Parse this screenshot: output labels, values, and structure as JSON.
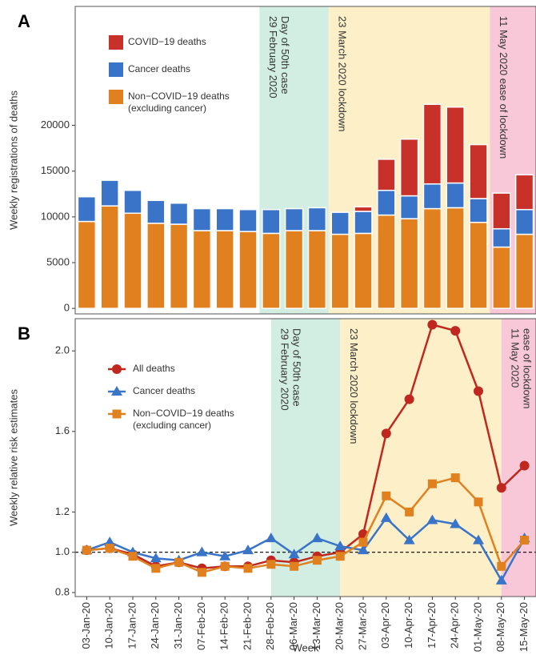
{
  "chart_data": [
    {
      "type": "stacked_bar",
      "panel": "A",
      "y_label": "Weekly registrations of deaths",
      "ylim": [
        -600,
        33000
      ],
      "yticks": [
        0,
        5000,
        10000,
        15000,
        20000
      ],
      "series": [
        {
          "name": "Non−COVID−19 deaths\n(excluding cancer)",
          "color": "#e0801e",
          "values": [
            9500,
            11200,
            10400,
            9300,
            9200,
            8500,
            8500,
            8400,
            8200,
            8500,
            8500,
            8100,
            8200,
            10200,
            9800,
            10900,
            11000,
            9400,
            6700,
            8100
          ]
        },
        {
          "name": "Cancer deaths",
          "color": "#3a74c9",
          "values": [
            2700,
            2800,
            2500,
            2500,
            2300,
            2400,
            2400,
            2400,
            2600,
            2400,
            2500,
            2400,
            2400,
            2700,
            2500,
            2700,
            2700,
            2600,
            2000,
            2700
          ]
        },
        {
          "name": "COVID−19 deaths",
          "color": "#c8312a",
          "values": [
            0,
            0,
            0,
            0,
            0,
            0,
            0,
            0,
            0,
            0,
            0,
            0,
            500,
            3400,
            6200,
            8700,
            8300,
            5900,
            3900,
            3800
          ]
        }
      ],
      "regions": [
        {
          "from": "28-Feb-20",
          "to": "13-Mar-20",
          "color": "#d2eee2",
          "text_color": "#2a8a6a",
          "lines": [
            "29 February 2020",
            "Day of 50th case"
          ]
        },
        {
          "from": "20-Mar-20",
          "to": "01-May-20",
          "color": "#fdefc8",
          "text_color": "#6b5a35",
          "lines": [
            "23 March 2020 lockdown"
          ]
        },
        {
          "from": "08-May-20",
          "to": "15-May-20",
          "color": "#f9c8d8",
          "text_color": "#d0306a",
          "lines": [
            "11 May 2020 ease of lockdown"
          ]
        }
      ]
    },
    {
      "type": "line",
      "panel": "B",
      "y_label": "Weekly relative risk estimates",
      "x_label": "Week",
      "categories": [
        "03-Jan-20",
        "10-Jan-20",
        "17-Jan-20",
        "24-Jan-20",
        "31-Jan-20",
        "07-Feb-20",
        "14-Feb-20",
        "21-Feb-20",
        "28-Feb-20",
        "06-Mar-20",
        "13-Mar-20",
        "20-Mar-20",
        "27-Mar-20",
        "03-Apr-20",
        "10-Apr-20",
        "17-Apr-20",
        "24-Apr-20",
        "01-May-20",
        "08-May-20",
        "15-May-20"
      ],
      "ylim": [
        0.78,
        2.16
      ],
      "yticks": [
        0.8,
        {
          "value": 1,
          "label": "1.0"
        },
        1.2,
        1.6,
        {
          "value": 2,
          "label": "2.0"
        }
      ],
      "hline": 1,
      "series": [
        {
          "name": "All deaths",
          "color": "#c0281f",
          "marker": "circle",
          "values": [
            1.01,
            1.02,
            0.99,
            0.93,
            0.95,
            0.92,
            0.93,
            0.93,
            0.96,
            0.95,
            0.98,
            1.0,
            1.09,
            1.59,
            1.76,
            2.13,
            2.1,
            1.8,
            1.32,
            1.43
          ]
        },
        {
          "name": "Cancer deaths",
          "color": "#3a74c9",
          "marker": "triangle",
          "values": [
            1.01,
            1.05,
            1.0,
            0.97,
            0.96,
            1.0,
            0.98,
            1.01,
            1.07,
            0.99,
            1.07,
            1.03,
            1.01,
            1.17,
            1.06,
            1.16,
            1.14,
            1.06,
            0.86,
            1.07
          ]
        },
        {
          "name": "Non−COVID−19 deaths\n(excluding cancer)",
          "color": "#e0801e",
          "marker": "square",
          "values": [
            1.01,
            1.02,
            0.98,
            0.92,
            0.95,
            0.9,
            0.93,
            0.92,
            0.94,
            0.93,
            0.96,
            0.98,
            1.05,
            1.28,
            1.2,
            1.34,
            1.37,
            1.25,
            0.93,
            1.06
          ]
        }
      ],
      "regions": [
        {
          "from": "28-Feb-20",
          "to": "13-Mar-20",
          "color": "#d2eee2",
          "text_color": "#2a8a6a",
          "lines": [
            "29 February 2020",
            "Day of 50th case"
          ]
        },
        {
          "from": "20-Mar-20",
          "to": "01-May-20",
          "color": "#fdefc8",
          "text_color": "#6b5a35",
          "lines": [
            "23 March 2020 lockdown"
          ]
        },
        {
          "from": "08-May-20",
          "to": "15-May-20",
          "color": "#f9c8d8",
          "text_color": "#d0306a",
          "lines": [
            "11 May 2020",
            "ease of lockdown"
          ]
        }
      ]
    }
  ]
}
